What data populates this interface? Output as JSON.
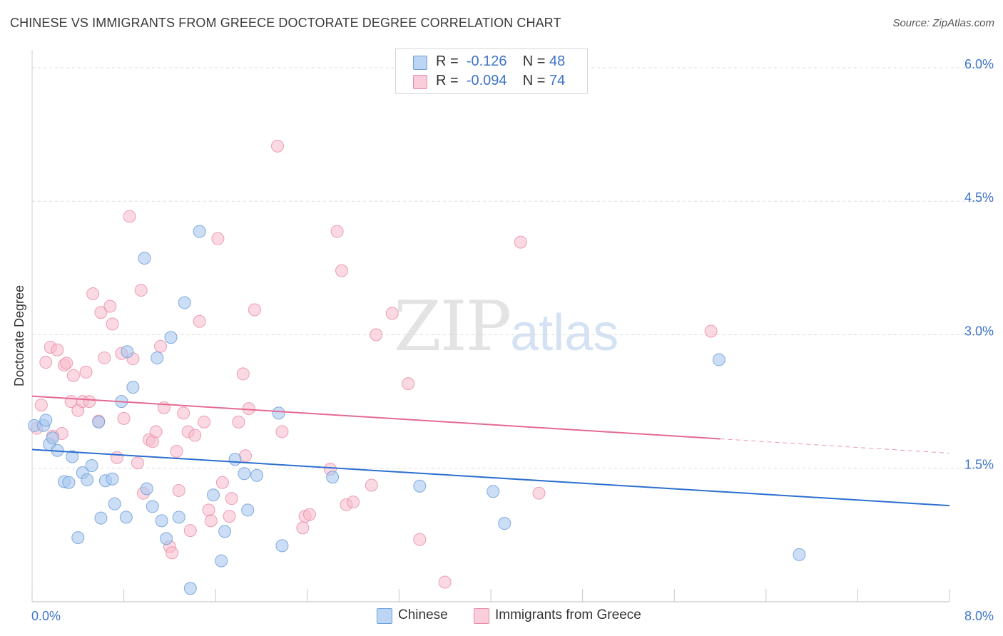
{
  "header": {
    "title": "CHINESE VS IMMIGRANTS FROM GREECE DOCTORATE DEGREE CORRELATION CHART",
    "source": "Source: ZipAtlas.com"
  },
  "legend": {
    "rows": [
      {
        "r_label": "R =",
        "r_value": "-0.126",
        "n_label": "N =",
        "n_value": "48"
      },
      {
        "r_label": "R =",
        "r_value": "-0.094",
        "n_label": "N =",
        "n_value": "74"
      }
    ]
  },
  "bottom_legend": {
    "items": [
      {
        "label": "Chinese"
      },
      {
        "label": "Immigrants from Greece"
      }
    ]
  },
  "watermark": {
    "zip": "ZIP",
    "atlas": "atlas"
  },
  "colors": {
    "chinese_fill": "#a8c8f0",
    "chinese_stroke": "#6f9fd8",
    "chinese_line": "#2c6fcf",
    "greece_fill": "#f7b9cb",
    "greece_stroke": "#e98aa8",
    "greece_line": "#e46a92",
    "axis_text": "#3f74c8",
    "grid": "#dcdcdc"
  },
  "chart_data": {
    "type": "scatter",
    "title": "CHINESE VS IMMIGRANTS FROM GREECE DOCTORATE DEGREE CORRELATION CHART",
    "xlabel": "",
    "ylabel": "Doctorate Degree",
    "xlim": [
      0,
      8.0
    ],
    "ylim": [
      0,
      6.2
    ],
    "x_tick_labels": [
      "0.0%",
      "8.0%"
    ],
    "y_ticks": [
      1.5,
      3.0,
      4.5,
      6.0
    ],
    "y_tick_labels": [
      "1.5%",
      "3.0%",
      "4.5%",
      "6.0%"
    ],
    "grid": true,
    "series": [
      {
        "name": "Chinese",
        "r": -0.126,
        "n": 48,
        "trend": {
          "x0": 0.0,
          "y0": 1.71,
          "x1": 8.0,
          "y1": 1.08
        },
        "points": [
          [
            0.02,
            1.98
          ],
          [
            0.1,
            1.98
          ],
          [
            0.12,
            2.04
          ],
          [
            0.15,
            1.77
          ],
          [
            0.18,
            1.84
          ],
          [
            0.22,
            1.7
          ],
          [
            0.28,
            1.35
          ],
          [
            0.32,
            1.34
          ],
          [
            0.35,
            1.63
          ],
          [
            0.4,
            0.72
          ],
          [
            0.44,
            1.45
          ],
          [
            0.48,
            1.37
          ],
          [
            0.52,
            1.53
          ],
          [
            0.58,
            2.02
          ],
          [
            0.6,
            0.94
          ],
          [
            0.64,
            1.36
          ],
          [
            0.7,
            1.38
          ],
          [
            0.72,
            1.1
          ],
          [
            0.78,
            2.25
          ],
          [
            0.82,
            0.95
          ],
          [
            0.83,
            2.81
          ],
          [
            0.88,
            2.41
          ],
          [
            0.98,
            3.86
          ],
          [
            1.0,
            1.27
          ],
          [
            1.05,
            1.07
          ],
          [
            1.09,
            2.74
          ],
          [
            1.13,
            0.91
          ],
          [
            1.17,
            0.71
          ],
          [
            1.21,
            2.97
          ],
          [
            1.28,
            0.95
          ],
          [
            1.33,
            3.36
          ],
          [
            1.38,
            0.15
          ],
          [
            1.46,
            4.16
          ],
          [
            1.58,
            1.2
          ],
          [
            1.65,
            0.46
          ],
          [
            1.68,
            0.79
          ],
          [
            1.77,
            1.6
          ],
          [
            1.85,
            1.44
          ],
          [
            1.88,
            1.03
          ],
          [
            1.96,
            1.42
          ],
          [
            2.15,
            2.12
          ],
          [
            2.18,
            0.63
          ],
          [
            2.62,
            1.4
          ],
          [
            3.38,
            1.3
          ],
          [
            4.02,
            1.24
          ],
          [
            4.12,
            0.88
          ],
          [
            5.99,
            2.72
          ],
          [
            6.69,
            0.53
          ]
        ]
      },
      {
        "name": "Immigrants from Greece",
        "r": -0.094,
        "n": 74,
        "trend": {
          "x0": 0.0,
          "y0": 2.31,
          "x1": 6.0,
          "y1": 1.83,
          "dash_to_x": 8.0,
          "dash_to_y": 1.67
        },
        "points": [
          [
            0.04,
            1.95
          ],
          [
            0.08,
            2.21
          ],
          [
            0.12,
            2.69
          ],
          [
            0.16,
            2.86
          ],
          [
            0.18,
            1.86
          ],
          [
            0.22,
            2.83
          ],
          [
            0.26,
            1.89
          ],
          [
            0.28,
            2.66
          ],
          [
            0.3,
            2.68
          ],
          [
            0.34,
            2.25
          ],
          [
            0.36,
            2.54
          ],
          [
            0.4,
            2.15
          ],
          [
            0.44,
            2.25
          ],
          [
            0.47,
            2.58
          ],
          [
            0.5,
            2.25
          ],
          [
            0.53,
            3.46
          ],
          [
            0.58,
            2.03
          ],
          [
            0.6,
            3.25
          ],
          [
            0.63,
            2.74
          ],
          [
            0.68,
            3.32
          ],
          [
            0.7,
            3.12
          ],
          [
            0.74,
            1.62
          ],
          [
            0.78,
            2.79
          ],
          [
            0.8,
            2.06
          ],
          [
            0.85,
            4.33
          ],
          [
            0.88,
            2.73
          ],
          [
            0.92,
            1.56
          ],
          [
            0.95,
            3.5
          ],
          [
            0.97,
            1.22
          ],
          [
            1.02,
            1.82
          ],
          [
            1.05,
            1.8
          ],
          [
            1.08,
            1.91
          ],
          [
            1.12,
            2.87
          ],
          [
            1.15,
            2.18
          ],
          [
            1.2,
            0.62
          ],
          [
            1.22,
            0.55
          ],
          [
            1.26,
            1.69
          ],
          [
            1.28,
            1.25
          ],
          [
            1.32,
            2.12
          ],
          [
            1.36,
            1.91
          ],
          [
            1.38,
            0.8
          ],
          [
            1.42,
            1.87
          ],
          [
            1.46,
            3.15
          ],
          [
            1.5,
            2.02
          ],
          [
            1.54,
            1.03
          ],
          [
            1.56,
            0.91
          ],
          [
            1.62,
            4.08
          ],
          [
            1.66,
            1.34
          ],
          [
            1.72,
            0.96
          ],
          [
            1.74,
            1.16
          ],
          [
            1.8,
            2.02
          ],
          [
            1.84,
            2.56
          ],
          [
            1.86,
            1.64
          ],
          [
            1.89,
            2.17
          ],
          [
            1.94,
            3.28
          ],
          [
            2.14,
            5.12
          ],
          [
            2.18,
            1.91
          ],
          [
            2.36,
            0.83
          ],
          [
            2.38,
            0.96
          ],
          [
            2.42,
            0.98
          ],
          [
            2.6,
            1.49
          ],
          [
            2.66,
            4.16
          ],
          [
            2.7,
            3.72
          ],
          [
            2.74,
            1.09
          ],
          [
            2.8,
            1.12
          ],
          [
            2.96,
            1.31
          ],
          [
            3.0,
            3.0
          ],
          [
            3.14,
            3.24
          ],
          [
            3.28,
            2.45
          ],
          [
            3.38,
            0.7
          ],
          [
            3.6,
            0.22
          ],
          [
            4.26,
            4.04
          ],
          [
            4.42,
            1.22
          ],
          [
            5.92,
            3.04
          ]
        ]
      }
    ]
  }
}
